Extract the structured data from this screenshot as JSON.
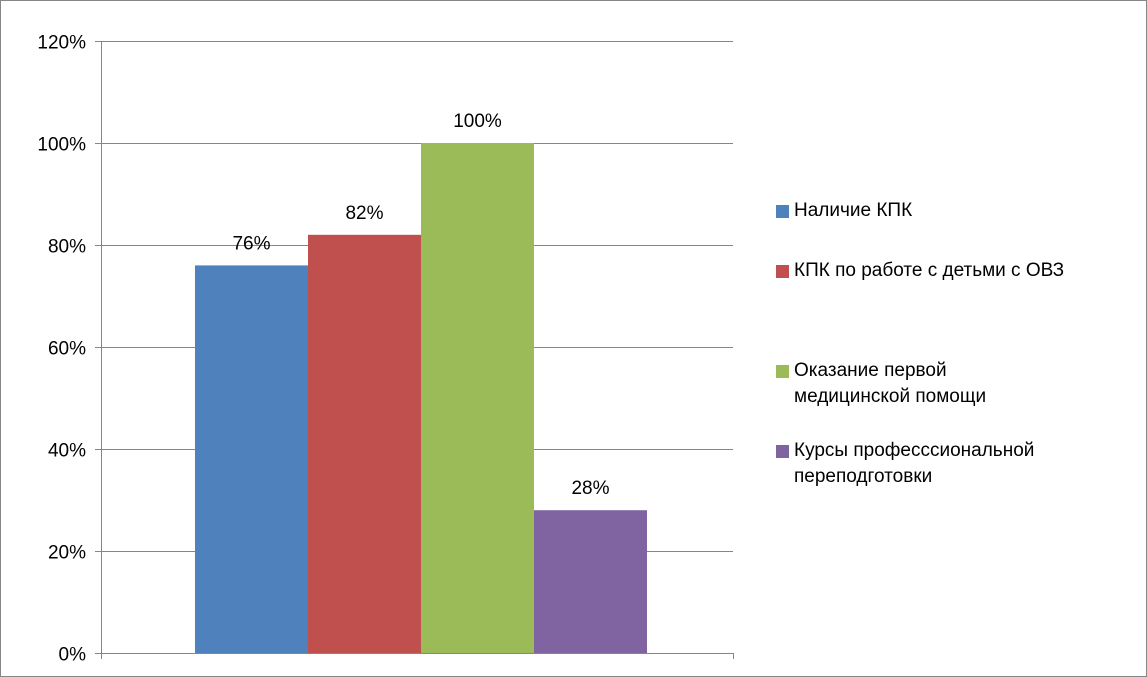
{
  "chart_data": {
    "type": "bar",
    "title": "",
    "xlabel": "",
    "ylabel": "",
    "ylim": [
      0,
      1.2
    ],
    "y_ticks": [
      "0%",
      "20%",
      "40%",
      "60%",
      "80%",
      "100%",
      "120%"
    ],
    "y_tick_values": [
      0,
      0.2,
      0.4,
      0.6,
      0.8,
      1.0,
      1.2
    ],
    "grid": true,
    "legend_position": "right",
    "series": [
      {
        "name": "Наличие КПК",
        "value": 0.76,
        "label": "76%",
        "color": "#4F81BD"
      },
      {
        "name": "КПК по работе с детьми с ОВЗ",
        "value": 0.82,
        "label": "82%",
        "color": "#C0504D"
      },
      {
        "name": "Оказание первой медицинской помощи",
        "value": 1.0,
        "label": "100%",
        "color": "#9BBB59"
      },
      {
        "name": "Курсы професссиональной переподготовки",
        "value": 0.28,
        "label": "28%",
        "color": "#8064A2"
      }
    ]
  },
  "legend": {
    "items": [
      {
        "lines": [
          "Наличие КПК"
        ],
        "color": "#4F81BD"
      },
      {
        "lines": [
          "КПК по работе с детьми с ОВЗ"
        ],
        "color": "#C0504D"
      },
      {
        "lines": [
          "Оказание первой",
          "медицинской помощи"
        ],
        "color": "#9BBB59"
      },
      {
        "lines": [
          "Курсы професссиональной",
          "переподготовки"
        ],
        "color": "#8064A2"
      }
    ]
  }
}
